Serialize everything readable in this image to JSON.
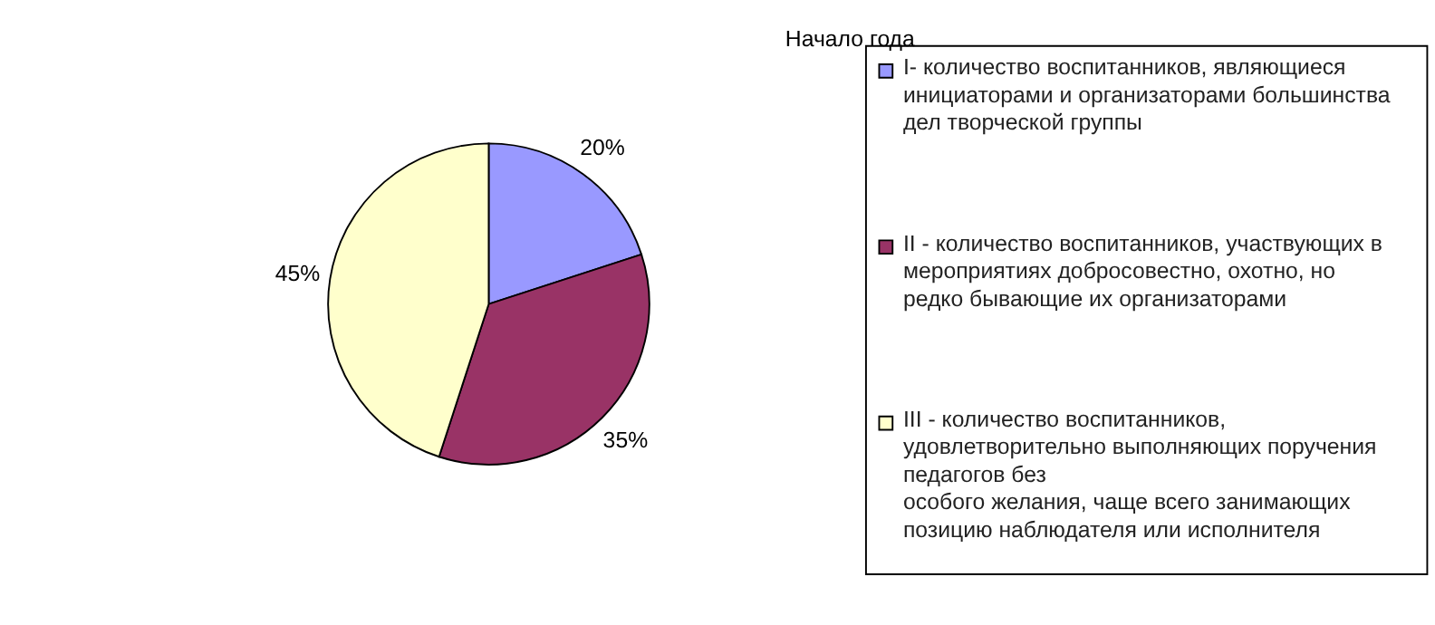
{
  "chart_data": {
    "type": "pie",
    "title": "Начало года",
    "categories": [
      "I- количество воспитанников, являющиеся\nинициаторами и организаторами большинства\nдел творческой группы",
      "II - количество воспитанников, участвующих в\nмероприятиях добросовестно, охотно, но\nредко бывающие их организаторами",
      "III - количество воспитанников,\nудовлетворительно выполняющих поручения\nпедагогов без\nособого желания, чаще всего занимающих\nпозицию наблюдателя или исполнителя"
    ],
    "values": [
      20,
      35,
      45
    ],
    "colors": [
      "#9999ff",
      "#993366",
      "#ffffcc"
    ],
    "value_labels": [
      "20%",
      "35%",
      "45%"
    ],
    "legend": "right"
  }
}
